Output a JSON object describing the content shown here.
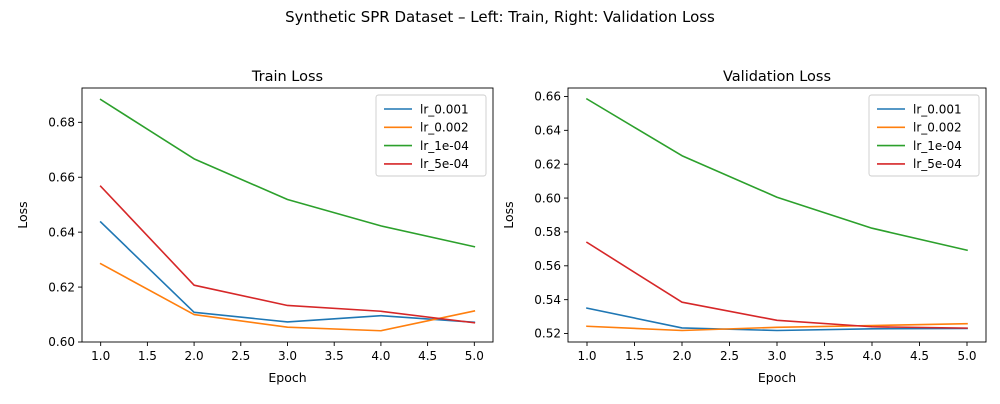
{
  "figure": {
    "suptitle": "Synthetic SPR Dataset – Left: Train, Right: Validation Loss"
  },
  "chart_data": [
    {
      "type": "line",
      "title": "Train Loss",
      "xlabel": "Epoch",
      "ylabel": "Loss",
      "xlim": [
        0.8,
        5.2
      ],
      "ylim": [
        0.6,
        0.6925
      ],
      "xticks": [
        "1.0",
        "1.5",
        "2.0",
        "2.5",
        "3.0",
        "3.5",
        "4.0",
        "4.5",
        "5.0"
      ],
      "yticks": [
        "0.60",
        "0.62",
        "0.64",
        "0.66",
        "0.68"
      ],
      "legend_position": "top-right",
      "grid": false,
      "x": [
        1,
        2,
        3,
        4,
        5
      ],
      "series": [
        {
          "name": "lr_0.001",
          "color": "#1f77b4",
          "values": [
            0.6437,
            0.6108,
            0.6073,
            0.6096,
            0.6072
          ]
        },
        {
          "name": "lr_0.002",
          "color": "#ff7f0e",
          "values": [
            0.6285,
            0.61,
            0.6054,
            0.6041,
            0.6113
          ]
        },
        {
          "name": "lr_1e-04",
          "color": "#2ca02c",
          "values": [
            0.6883,
            0.6667,
            0.6519,
            0.6423,
            0.6347
          ]
        },
        {
          "name": "lr_5e-04",
          "color": "#d62728",
          "values": [
            0.6567,
            0.6207,
            0.6133,
            0.6112,
            0.607
          ]
        }
      ]
    },
    {
      "type": "line",
      "title": "Validation Loss",
      "xlabel": "Epoch",
      "ylabel": "Loss",
      "xlim": [
        0.8,
        5.2
      ],
      "ylim": [
        0.515,
        0.665
      ],
      "xticks": [
        "1.0",
        "1.5",
        "2.0",
        "2.5",
        "3.0",
        "3.5",
        "4.0",
        "4.5",
        "5.0"
      ],
      "yticks": [
        "0.52",
        "0.54",
        "0.56",
        "0.58",
        "0.60",
        "0.62",
        "0.64",
        "0.66"
      ],
      "legend_position": "top-right",
      "grid": false,
      "x": [
        1,
        2,
        3,
        4,
        5
      ],
      "series": [
        {
          "name": "lr_0.001",
          "color": "#1f77b4",
          "values": [
            0.535,
            0.5233,
            0.5218,
            0.5228,
            0.523
          ]
        },
        {
          "name": "lr_0.002",
          "color": "#ff7f0e",
          "values": [
            0.5243,
            0.5218,
            0.5237,
            0.5247,
            0.5258
          ]
        },
        {
          "name": "lr_1e-04",
          "color": "#2ca02c",
          "values": [
            0.6585,
            0.625,
            0.6005,
            0.5822,
            0.5692
          ]
        },
        {
          "name": "lr_5e-04",
          "color": "#d62728",
          "values": [
            0.5738,
            0.5385,
            0.5278,
            0.524,
            0.5232
          ]
        }
      ]
    }
  ]
}
